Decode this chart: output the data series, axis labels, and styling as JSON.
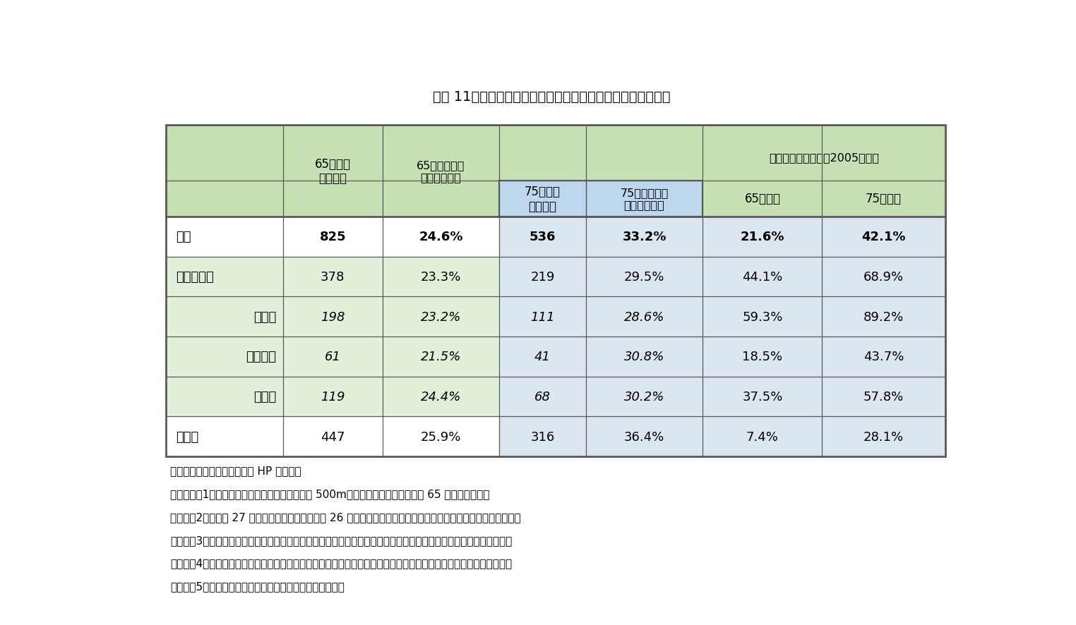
{
  "title": "図表 11　食料品へのアクセスに困難がある高齢者人口と比率",
  "title_fontsize": 14,
  "background_color": "#ffffff",
  "header_green": "#c6e0b4",
  "header_blue": "#bdd7ee",
  "cell_white": "#ffffff",
  "cell_light_green": "#e2efda",
  "cell_light_blue": "#dce6f1",
  "border_color": "#595959",
  "rows": [
    {
      "label": "全国",
      "values": [
        "825",
        "24.6%",
        "536",
        "33.2%",
        "21.6%",
        "42.1%"
      ],
      "bold": true,
      "row_bg": "cell_white",
      "italic_cols": [],
      "label_align": "left"
    },
    {
      "label": "三大都市圏",
      "values": [
        "378",
        "23.3%",
        "219",
        "29.5%",
        "44.1%",
        "68.9%"
      ],
      "bold": false,
      "row_bg": "cell_light_green",
      "italic_cols": [],
      "label_align": "left"
    },
    {
      "label": "東京圏",
      "values": [
        "198",
        "23.2%",
        "111",
        "28.6%",
        "59.3%",
        "89.2%"
      ],
      "bold": false,
      "row_bg": "cell_light_green",
      "italic_cols": [
        0,
        1,
        2,
        3
      ],
      "label_align": "right"
    },
    {
      "label": "名古屋圏",
      "values": [
        "61",
        "21.5%",
        "41",
        "30.8%",
        "18.5%",
        "43.7%"
      ],
      "bold": false,
      "row_bg": "cell_light_green",
      "italic_cols": [
        0,
        1,
        2,
        3
      ],
      "label_align": "right"
    },
    {
      "label": "大阪圏",
      "values": [
        "119",
        "24.4%",
        "68",
        "30.2%",
        "37.5%",
        "57.8%"
      ],
      "bold": false,
      "row_bg": "cell_light_green",
      "italic_cols": [
        0,
        1,
        2,
        3
      ],
      "label_align": "right"
    },
    {
      "label": "地方圏",
      "values": [
        "447",
        "25.9%",
        "316",
        "36.4%",
        "7.4%",
        "28.1%"
      ],
      "bold": false,
      "row_bg": "cell_white",
      "italic_cols": [],
      "label_align": "left"
    }
  ],
  "footer_lines": [
    "（資料）農林水産政策研究所 HP より抜粋",
    "（注）　（1）「アクセス困難人口」は店舗まで 500m以上かつ自動車利用困難な 65 歳以上高齢者。",
    "　　　（2）「平成 27 年国勢調査」および「平成 26 年商業統計」のメッシュ統計を用いて推計したものである。",
    "　　　（3）店舗は食肉、鮮魚、果実・野菜小売業、百貨店、総合スーパー、食品スーパー、コンビニエンスストア。",
    "　　　（4）東京圏は東京、埼玉、千葉、神奈川、名古屋圏は愛知、岐阜、三重、大阪圏は大阪、京都、兵庫、奈良。",
    "　　　（5）ラウンドのため合計が一致しない場合がある。"
  ],
  "footer_fontsize": 11,
  "cell_fontsize": 13,
  "header_fontsize": 12
}
